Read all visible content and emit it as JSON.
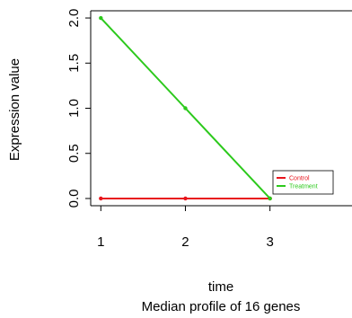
{
  "chart_data": {
    "type": "line",
    "xlabel": "time",
    "ylabel": "Expression value",
    "caption": "Median profile of  16  genes",
    "x": [
      1,
      2,
      3
    ],
    "xticks": [
      "1",
      "2",
      "3"
    ],
    "yticks": [
      "0.0",
      "0.5",
      "1.0",
      "1.5",
      "2.0"
    ],
    "xlim": [
      0.88,
      3.97
    ],
    "ylim": [
      -0.08,
      2.08
    ],
    "grid": false,
    "legend_position": "bottom-right",
    "series": [
      {
        "name": "Control",
        "color": "#e8141c",
        "values": [
          0,
          0,
          0
        ]
      },
      {
        "name": "Treatment",
        "color": "#2cc91c",
        "values": [
          2,
          1,
          0
        ]
      }
    ]
  }
}
